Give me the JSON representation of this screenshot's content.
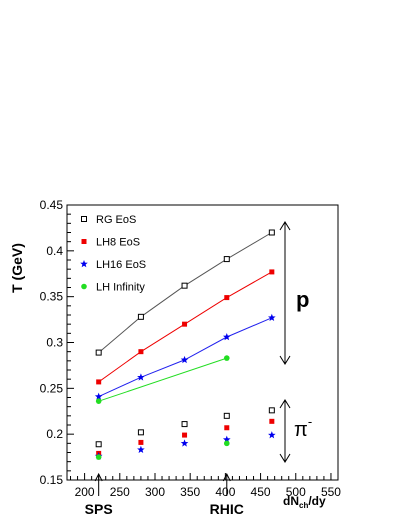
{
  "chart_data": {
    "type": "scatter",
    "title": "",
    "xlabel": "dN",
    "xlabel_sub": "ch",
    "xlabel_suffix": "/dy",
    "ylabel": "T (GeV)",
    "xlim": [
      175,
      560
    ],
    "ylim": [
      0.15,
      0.45
    ],
    "x_ticks": [
      200,
      250,
      300,
      350,
      400,
      450,
      500,
      550
    ],
    "y_ticks": [
      0.15,
      0.2,
      0.25,
      0.3,
      0.35,
      0.4,
      0.45
    ],
    "y_tick_labels": [
      "0.15",
      "0.2",
      "0.25",
      "0.3",
      "0.35",
      "0.4",
      "0.45"
    ],
    "grid": false,
    "legend_position": "top-left",
    "series": [
      {
        "name": "RG EoS",
        "marker": "open-square",
        "color": "#000000",
        "line_color": "#555555",
        "x": [
          220,
          280,
          342,
          402,
          466
        ],
        "y": [
          0.289,
          0.328,
          0.362,
          0.391,
          0.42
        ],
        "connected": true
      },
      {
        "name": "LH8 EoS",
        "marker": "filled-square",
        "color": "#ee0000",
        "line_color": "#ee0000",
        "x": [
          220,
          280,
          342,
          402,
          466
        ],
        "y": [
          0.257,
          0.29,
          0.32,
          0.349,
          0.377
        ],
        "connected": true
      },
      {
        "name": "LH16 EoS",
        "marker": "star",
        "color": "#0000ee",
        "line_color": "#2222ee",
        "x": [
          220,
          280,
          342,
          402,
          466
        ],
        "y": [
          0.241,
          0.262,
          0.281,
          0.306,
          0.327
        ],
        "connected": true
      },
      {
        "name": "LH Infinity",
        "marker": "circle",
        "color": "#22dd22",
        "line_color": "#22dd22",
        "x": [
          220,
          402
        ],
        "y": [
          0.236,
          0.283
        ],
        "connected": true
      }
    ],
    "pion_series": [
      {
        "marker": "open-square",
        "color": "#000000",
        "x": [
          220,
          280,
          342,
          402,
          466
        ],
        "y": [
          0.189,
          0.202,
          0.211,
          0.22,
          0.226
        ]
      },
      {
        "marker": "filled-square",
        "color": "#ee0000",
        "x": [
          220,
          280,
          342,
          402,
          466
        ],
        "y": [
          0.179,
          0.191,
          0.199,
          0.207,
          0.214
        ]
      },
      {
        "marker": "star",
        "color": "#0000ee",
        "x": [
          220,
          280,
          342,
          402,
          466
        ],
        "y": [
          0.176,
          0.183,
          0.19,
          0.194,
          0.199
        ]
      },
      {
        "marker": "circle",
        "color": "#22dd22",
        "x": [
          220,
          402
        ],
        "y": [
          0.175,
          0.19
        ]
      }
    ],
    "annotations": {
      "proton_label": "p",
      "pion_label": "π",
      "pion_charge": "-",
      "sps_label": "SPS",
      "rhic_label": "RHIC",
      "sps_x": 220,
      "rhic_x": 402
    }
  }
}
